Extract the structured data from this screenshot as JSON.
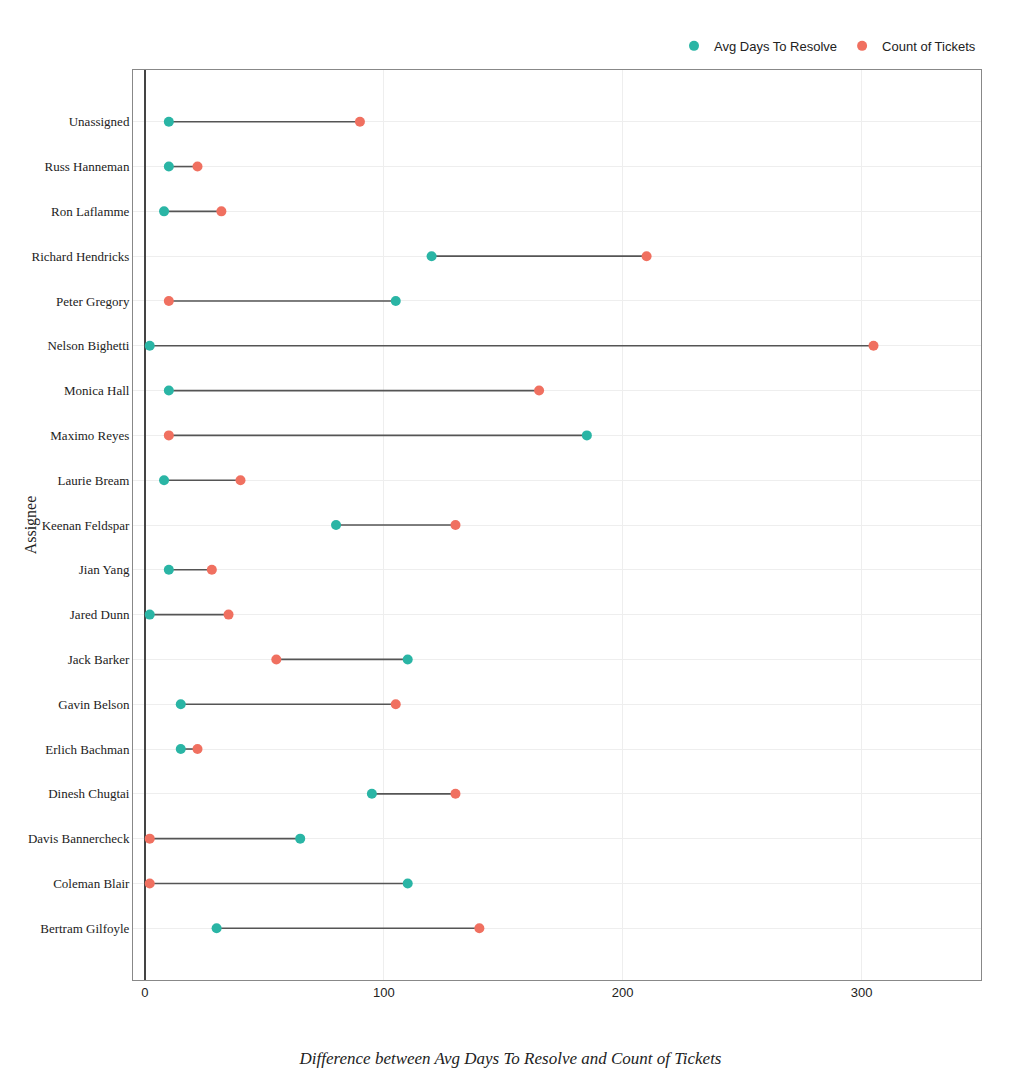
{
  "chart_data": {
    "type": "dumbbell",
    "title": "Difference between Avg Days To Resolve and Count of Tickets",
    "ylabel": "Assignee",
    "categories": [
      "Unassigned",
      "Russ Hanneman",
      "Ron Laflamme",
      "Richard Hendricks",
      "Peter Gregory",
      "Nelson Bighetti",
      "Monica Hall",
      "Maximo Reyes",
      "Laurie Bream",
      "Keenan Feldspar",
      "Jian Yang",
      "Jared Dunn",
      "Jack Barker",
      "Gavin Belson",
      "Erlich Bachman",
      "Dinesh Chugtai",
      "Davis Bannercheck",
      "Coleman Blair",
      "Bertram Gilfoyle"
    ],
    "series": [
      {
        "name": "Avg Days To Resolve",
        "color": "#2ab5a5",
        "marker": "circle",
        "values": [
          10,
          10,
          8,
          120,
          105,
          2,
          10,
          185,
          8,
          80,
          10,
          2,
          110,
          15,
          15,
          95,
          65,
          110,
          30
        ]
      },
      {
        "name": "Count of Tickets",
        "color": "#f07060",
        "marker": "circle",
        "values": [
          90,
          22,
          32,
          210,
          10,
          305,
          165,
          10,
          40,
          130,
          28,
          35,
          55,
          105,
          22,
          130,
          2,
          2,
          140
        ]
      }
    ],
    "xlim": [
      -5,
      350
    ],
    "xticks": [
      0,
      100,
      200,
      300
    ],
    "grid": true,
    "legend": "top right"
  }
}
